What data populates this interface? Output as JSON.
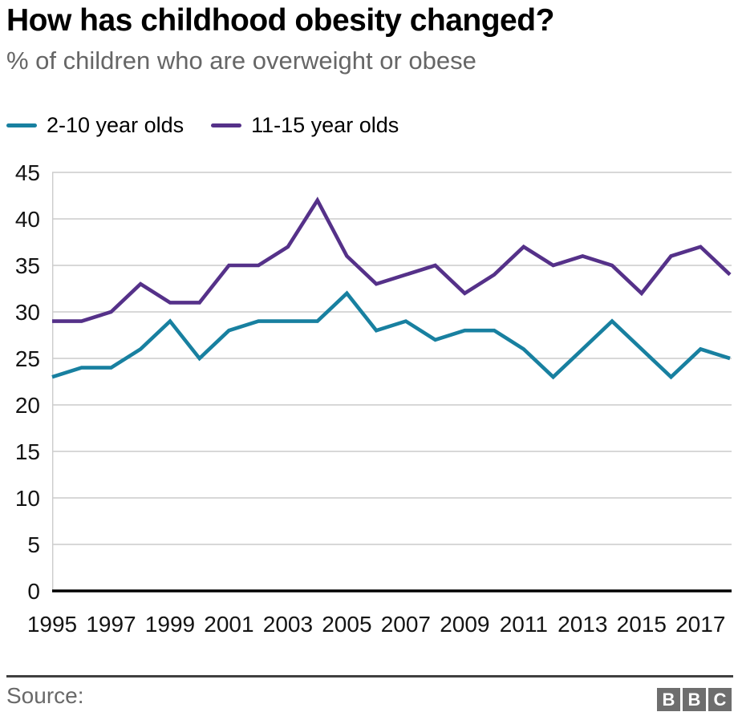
{
  "header": {
    "title": "How has childhood obesity changed?",
    "subtitle": "% of children who are overweight or obese"
  },
  "legend": [
    {
      "label": "2-10 year olds",
      "color": "#1880A0"
    },
    {
      "label": "11-15 year olds",
      "color": "#553189"
    }
  ],
  "chart_data": {
    "type": "line",
    "x": [
      1995,
      1996,
      1997,
      1998,
      1999,
      2000,
      2001,
      2002,
      2003,
      2004,
      2005,
      2006,
      2007,
      2008,
      2009,
      2010,
      2011,
      2012,
      2013,
      2014,
      2015,
      2016,
      2017,
      2018
    ],
    "series": [
      {
        "name": "2-10 year olds",
        "color": "#1880A0",
        "values": [
          23,
          24,
          24,
          26,
          29,
          25,
          28,
          29,
          29,
          29,
          32,
          28,
          29,
          27,
          28,
          28,
          26,
          23,
          26,
          29,
          26,
          23,
          26,
          25
        ]
      },
      {
        "name": "11-15 year olds",
        "color": "#553189",
        "values": [
          29,
          29,
          30,
          33,
          31,
          31,
          35,
          35,
          37,
          42,
          36,
          33,
          34,
          35,
          32,
          34,
          37,
          35,
          36,
          35,
          32,
          36,
          37,
          34
        ]
      }
    ],
    "title": "How has childhood obesity changed?",
    "subtitle": "% of children who are overweight or obese",
    "xlabel": "",
    "ylabel": "",
    "ylim": [
      0,
      45
    ],
    "yticks": [
      0,
      5,
      10,
      15,
      20,
      25,
      30,
      35,
      40,
      45
    ],
    "xtick_labels": [
      "1995",
      "1997",
      "1999",
      "2001",
      "2003",
      "2005",
      "2007",
      "2009",
      "2011",
      "2013",
      "2015",
      "2017"
    ],
    "grid": "horizontal",
    "legend_position": "top-left",
    "colors": {
      "gridline": "#cccccc",
      "baseline": "#000000",
      "tick_text": "#141414"
    }
  },
  "footer": {
    "source_label": "Source:",
    "logo_letters": [
      "B",
      "B",
      "C"
    ]
  }
}
